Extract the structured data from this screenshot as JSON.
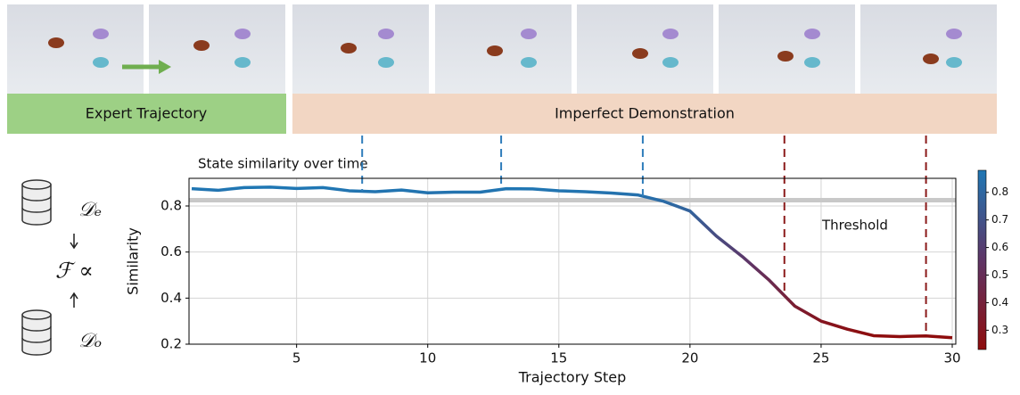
{
  "frames": {
    "expert_label": "Expert Trajectory",
    "imperfect_label": "Imperfect Demonstration"
  },
  "left_diagram": {
    "expert_set": "𝒟ₑ",
    "other_set": "𝒟ₒ",
    "relation": "ℱ ∝"
  },
  "chart_data": {
    "type": "line",
    "annotation": "State similarity over time",
    "xlabel": "Trajectory Step",
    "ylabel": "Similarity",
    "x": [
      1,
      2,
      3,
      4,
      5,
      6,
      7,
      8,
      9,
      10,
      11,
      12,
      13,
      14,
      15,
      16,
      17,
      18,
      19,
      20,
      21,
      22,
      23,
      24,
      25,
      26,
      27,
      28,
      29,
      30
    ],
    "series": [
      {
        "name": "Similarity",
        "values": [
          0.875,
          0.868,
          0.88,
          0.882,
          0.876,
          0.88,
          0.866,
          0.862,
          0.869,
          0.857,
          0.86,
          0.86,
          0.875,
          0.874,
          0.866,
          0.862,
          0.856,
          0.848,
          0.82,
          0.778,
          0.67,
          0.58,
          0.48,
          0.365,
          0.3,
          0.265,
          0.237,
          0.233,
          0.236,
          0.228
        ]
      }
    ],
    "xlim": [
      1,
      30
    ],
    "xticks": [
      5,
      10,
      15,
      20,
      25,
      30
    ],
    "ylim": [
      0.2,
      0.92
    ],
    "yticks": [
      0.2,
      0.4,
      0.6,
      0.8
    ],
    "grid": true,
    "threshold": {
      "value": 0.825,
      "label": "Threshold",
      "color": "#c8c8c8"
    },
    "markers": [
      {
        "x": 7.5,
        "color": "#2f7dbb"
      },
      {
        "x": 12.8,
        "color": "#2f7dbb"
      },
      {
        "x": 18.2,
        "color": "#2f7dbb"
      },
      {
        "x": 23.6,
        "color": "#8b1a1a"
      },
      {
        "x": 29.0,
        "color": "#8b1a1a"
      }
    ],
    "colormap": [
      "#8e0c0c",
      "#5e3566",
      "#1f77b4"
    ],
    "clim": [
      0.23,
      0.88
    ],
    "cticks": [
      0.3,
      0.4,
      0.5,
      0.6,
      0.7,
      0.8
    ]
  }
}
